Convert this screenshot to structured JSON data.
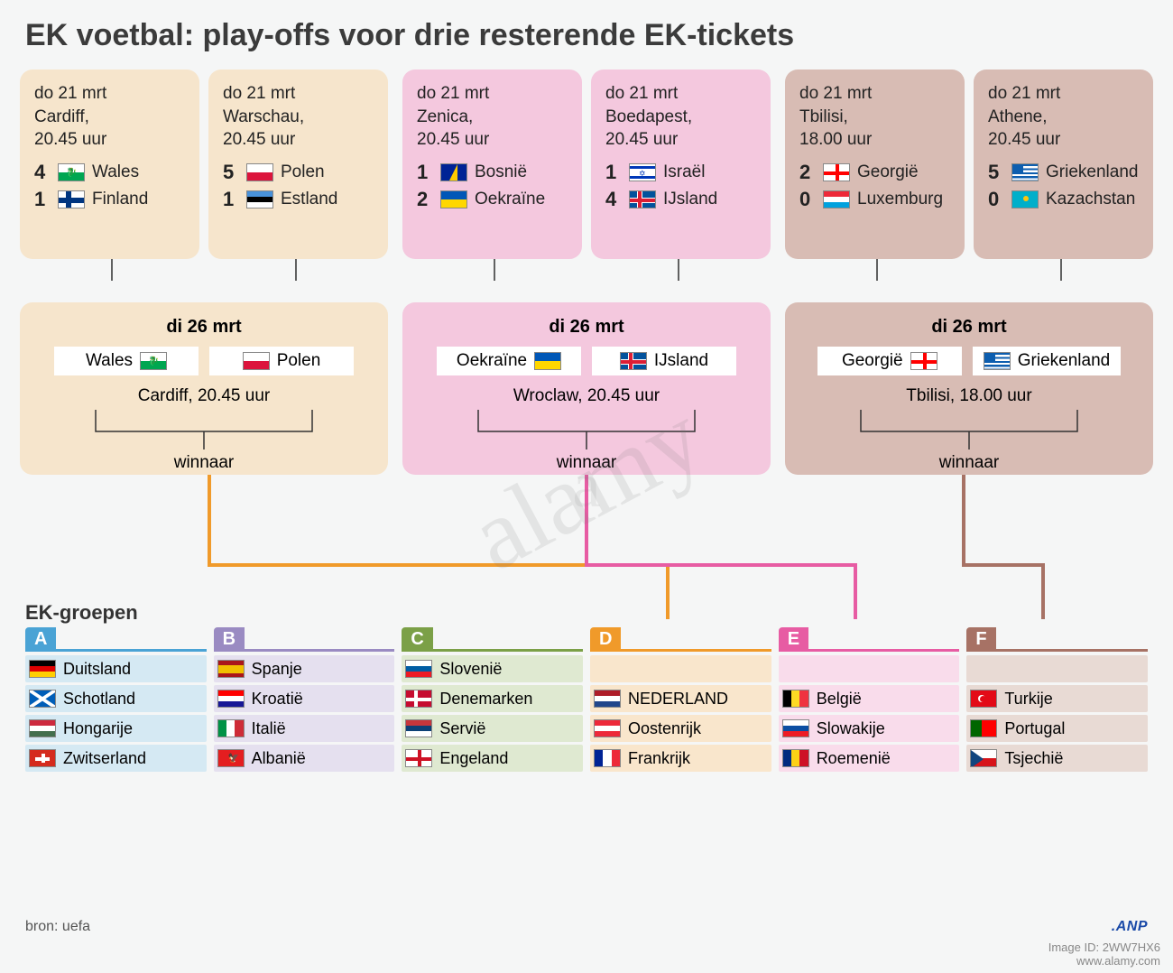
{
  "title": "EK voetbal: play-offs voor drie resterende EK-tickets",
  "paths": [
    {
      "bg": "#f6e5cc",
      "bg_final": "#f6e5cc",
      "arrow": "#f09a2a",
      "semis": [
        {
          "date": "do 21 mrt",
          "venue": "Cardiff,",
          "time": "20.45 uur",
          "teams": [
            {
              "score": "4",
              "name": "Wales",
              "flag": "wales"
            },
            {
              "score": "1",
              "name": "Finland",
              "flag": "finland"
            }
          ]
        },
        {
          "date": "do 21 mrt",
          "venue": "Warschau,",
          "time": "20.45 uur",
          "teams": [
            {
              "score": "5",
              "name": "Polen",
              "flag": "poland"
            },
            {
              "score": "1",
              "name": "Estland",
              "flag": "estonia"
            }
          ]
        }
      ],
      "final": {
        "date": "di 26 mrt",
        "teams": [
          {
            "name": "Wales",
            "flag": "wales"
          },
          {
            "name": "Polen",
            "flag": "poland"
          }
        ],
        "venue": "Cardiff, 20.45 uur",
        "winner_label": "winnaar"
      },
      "target_group_index": 3
    },
    {
      "bg": "#f4c8de",
      "bg_final": "#f4c8de",
      "arrow": "#e75ca3",
      "semis": [
        {
          "date": "do 21 mrt",
          "venue": "Zenica,",
          "time": "20.45 uur",
          "teams": [
            {
              "score": "1",
              "name": "Bosnië",
              "flag": "bosnia"
            },
            {
              "score": "2",
              "name": "Oekraïne",
              "flag": "ukraine"
            }
          ]
        },
        {
          "date": "do 21 mrt",
          "venue": "Boedapest,",
          "time": "20.45 uur",
          "teams": [
            {
              "score": "1",
              "name": "Israël",
              "flag": "israel"
            },
            {
              "score": "4",
              "name": "IJsland",
              "flag": "iceland"
            }
          ]
        }
      ],
      "final": {
        "date": "di 26 mrt",
        "teams": [
          {
            "name": "Oekraïne",
            "flag": "ukraine"
          },
          {
            "name": "IJsland",
            "flag": "iceland"
          }
        ],
        "venue": "Wroclaw, 20.45 uur",
        "winner_label": "winnaar"
      },
      "target_group_index": 4
    },
    {
      "bg": "#d8bcb4",
      "bg_final": "#d8bcb4",
      "arrow": "#a77265",
      "semis": [
        {
          "date": "do 21 mrt",
          "venue": "Tbilisi,",
          "time": "18.00 uur",
          "teams": [
            {
              "score": "2",
              "name": "Georgië",
              "flag": "georgia"
            },
            {
              "score": "0",
              "name": "Luxemburg",
              "flag": "luxembourg"
            }
          ]
        },
        {
          "date": "do 21 mrt",
          "venue": "Athene,",
          "time": "20.45 uur",
          "teams": [
            {
              "score": "5",
              "name": "Griekenland",
              "flag": "greece"
            },
            {
              "score": "0",
              "name": "Kazachstan",
              "flag": "kazakhstan"
            }
          ]
        }
      ],
      "final": {
        "date": "di 26 mrt",
        "teams": [
          {
            "name": "Georgië",
            "flag": "georgia"
          },
          {
            "name": "Griekenland",
            "flag": "greece"
          }
        ],
        "venue": "Tbilisi, 18.00 uur",
        "winner_label": "winnaar"
      },
      "target_group_index": 5
    }
  ],
  "groups_title": "EK-groepen",
  "groups": [
    {
      "letter": "A",
      "color": "#4aa3d5",
      "row_bg": "#d5e9f3",
      "teams": [
        {
          "name": "Duitsland",
          "flag": "germany"
        },
        {
          "name": "Schotland",
          "flag": "scotland"
        },
        {
          "name": "Hongarije",
          "flag": "hungary"
        },
        {
          "name": "Zwitserland",
          "flag": "switzerland"
        }
      ]
    },
    {
      "letter": "B",
      "color": "#9a8bc2",
      "row_bg": "#e5e0ef",
      "teams": [
        {
          "name": "Spanje",
          "flag": "spain"
        },
        {
          "name": "Kroatië",
          "flag": "croatia"
        },
        {
          "name": "Italië",
          "flag": "italy"
        },
        {
          "name": "Albanië",
          "flag": "albania"
        }
      ]
    },
    {
      "letter": "C",
      "color": "#7ba047",
      "row_bg": "#dfe9d1",
      "teams": [
        {
          "name": "Slovenië",
          "flag": "slovenia"
        },
        {
          "name": "Denemarken",
          "flag": "denmark"
        },
        {
          "name": "Servië",
          "flag": "serbia"
        },
        {
          "name": "Engeland",
          "flag": "england"
        }
      ]
    },
    {
      "letter": "D",
      "color": "#f09a2a",
      "row_bg": "#f9e6cc",
      "teams": [
        {
          "name": "",
          "flag": ""
        },
        {
          "name": "NEDERLAND",
          "flag": "netherlands"
        },
        {
          "name": "Oostenrijk",
          "flag": "austria"
        },
        {
          "name": "Frankrijk",
          "flag": "france"
        }
      ]
    },
    {
      "letter": "E",
      "color": "#e75ca3",
      "row_bg": "#f9dceb",
      "teams": [
        {
          "name": "",
          "flag": ""
        },
        {
          "name": "België",
          "flag": "belgium"
        },
        {
          "name": "Slowakije",
          "flag": "slovakia"
        },
        {
          "name": "Roemenië",
          "flag": "romania"
        }
      ]
    },
    {
      "letter": "F",
      "color": "#a77265",
      "row_bg": "#e8dad4",
      "teams": [
        {
          "name": "",
          "flag": ""
        },
        {
          "name": "Turkije",
          "flag": "turkey"
        },
        {
          "name": "Portugal",
          "flag": "portugal"
        },
        {
          "name": "Tsjechië",
          "flag": "czech"
        }
      ]
    }
  ],
  "source_label": "bron: uefa",
  "logo_label": ".ANP",
  "watermark": "alamy",
  "watermark_id": "Image ID: 2WW7HX6\nwww.alamy.com"
}
